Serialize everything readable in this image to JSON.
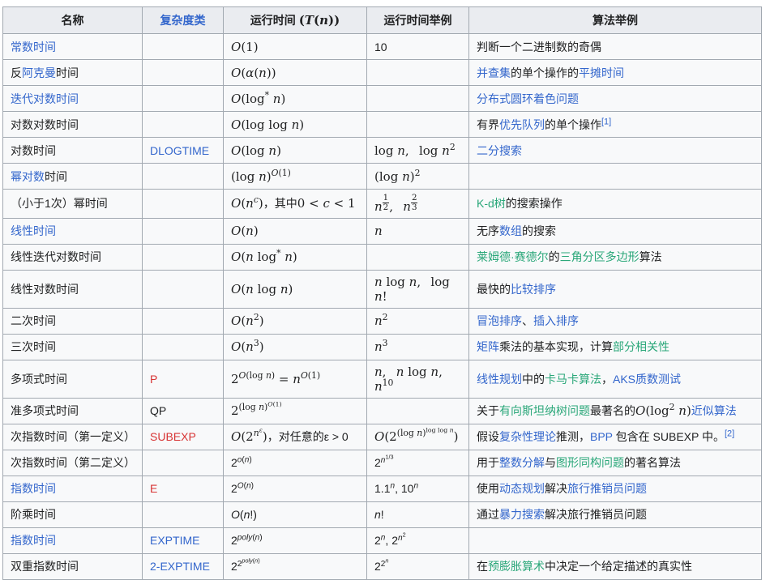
{
  "colors": {
    "link_blue": "#3366cc",
    "interwiki_green": "#2aa779",
    "redlink_red": "#d73333",
    "text": "#202122",
    "border": "#a2a9b1",
    "header_bg": "#eaecf0",
    "cell_bg": "#f8f9fa"
  },
  "table": {
    "header_names": [
      "col-name",
      "col-complexity-class",
      "col-running-time",
      "col-running-time-examples",
      "col-algorithm-examples"
    ],
    "headers": [
      [
        {
          "t": "名称"
        }
      ],
      [
        {
          "t": "复杂度类",
          "c": "blue"
        }
      ],
      [
        {
          "t": "运行时间 "
        },
        {
          "m": "(T(n))"
        }
      ],
      [
        {
          "t": "运行时间举例"
        }
      ],
      [
        {
          "t": "算法举例"
        }
      ]
    ],
    "rows": [
      {
        "name": [
          {
            "t": "常数时间",
            "c": "blue"
          }
        ],
        "cls": [],
        "time": [
          {
            "m": "O(1)"
          }
        ],
        "ex": [
          {
            "t": "10"
          }
        ],
        "alg": [
          {
            "t": "判断一个二进制数的奇偶"
          }
        ]
      },
      {
        "name": [
          {
            "t": "反"
          },
          {
            "t": "阿克曼",
            "c": "blue"
          },
          {
            "t": "时间"
          }
        ],
        "cls": [],
        "time": [
          {
            "m": "O(α(n))"
          }
        ],
        "ex": [],
        "alg": [
          {
            "t": "并查集",
            "c": "blue"
          },
          {
            "t": "的单个操作的"
          },
          {
            "t": "平摊时间",
            "c": "blue"
          }
        ]
      },
      {
        "name": [
          {
            "t": "迭代对数时间",
            "c": "blue"
          }
        ],
        "cls": [],
        "time": [
          {
            "m": "O(log^{*} n)"
          }
        ],
        "ex": [],
        "alg": [
          {
            "t": "分布式圆环着色问题",
            "c": "blue"
          }
        ]
      },
      {
        "name": [
          {
            "t": "对数对数时间"
          }
        ],
        "cls": [],
        "time": [
          {
            "m": "O(log log n)"
          }
        ],
        "ex": [],
        "alg": [
          {
            "t": "有界"
          },
          {
            "t": "优先队列",
            "c": "blue"
          },
          {
            "t": "的单个操作"
          },
          {
            "t": "[1]",
            "c": "blue",
            "sup": true
          }
        ]
      },
      {
        "name": [
          {
            "t": "对数时间"
          }
        ],
        "cls": [
          {
            "t": "DLOGTIME",
            "c": "blue"
          }
        ],
        "time": [
          {
            "m": "O(log n)"
          }
        ],
        "ex": [
          {
            "m": "log n,  log n^{2}"
          }
        ],
        "alg": [
          {
            "t": "二分搜索",
            "c": "blue"
          }
        ]
      },
      {
        "name": [
          {
            "t": "幂对数",
            "c": "blue"
          },
          {
            "t": "时间"
          }
        ],
        "cls": [],
        "time": [
          {
            "m": "(log n)^{O(1)}"
          }
        ],
        "ex": [
          {
            "m": "(log n)^{2}"
          }
        ],
        "alg": []
      },
      {
        "name": [
          {
            "t": "（小于1次）幂时间"
          }
        ],
        "cls": [],
        "time": [
          {
            "m": "O(n^{c})"
          },
          {
            "t": "，其中"
          },
          {
            "m": "0 < c < 1"
          }
        ],
        "ex": [
          {
            "m": "n^{\\f{1}{2}},  n^{\\f{2}{3}}"
          }
        ],
        "alg": [
          {
            "t": "K-d树",
            "c": "green"
          },
          {
            "t": "的搜索操作"
          }
        ]
      },
      {
        "name": [
          {
            "t": "线性时间",
            "c": "blue"
          }
        ],
        "cls": [],
        "time": [
          {
            "m": "O(n)"
          }
        ],
        "ex": [
          {
            "m": "n"
          }
        ],
        "alg": [
          {
            "t": "无序"
          },
          {
            "t": "数组",
            "c": "blue"
          },
          {
            "t": "的搜索"
          }
        ]
      },
      {
        "name": [
          {
            "t": "线性迭代对数时间"
          }
        ],
        "cls": [],
        "time": [
          {
            "m": "O(n log^{*} n)"
          }
        ],
        "ex": [],
        "alg": [
          {
            "t": "莱姆德·赛德尔",
            "c": "green"
          },
          {
            "t": "的"
          },
          {
            "t": "三角分区多边形",
            "c": "green"
          },
          {
            "t": "算法"
          }
        ]
      },
      {
        "name": [
          {
            "t": "线性对数时间"
          }
        ],
        "cls": [],
        "time": [
          {
            "m": "O(n log n)"
          }
        ],
        "ex": [
          {
            "m": "n log n,  log n!"
          }
        ],
        "alg": [
          {
            "t": "最快的"
          },
          {
            "t": "比较排序",
            "c": "blue"
          }
        ]
      },
      {
        "name": [
          {
            "t": "二次时间"
          }
        ],
        "cls": [],
        "time": [
          {
            "m": "O(n^{2})"
          }
        ],
        "ex": [
          {
            "m": "n^{2}"
          }
        ],
        "alg": [
          {
            "t": "冒泡排序",
            "c": "blue"
          },
          {
            "t": "、"
          },
          {
            "t": "插入排序",
            "c": "blue"
          }
        ]
      },
      {
        "name": [
          {
            "t": "三次时间"
          }
        ],
        "cls": [],
        "time": [
          {
            "m": "O(n^{3})"
          }
        ],
        "ex": [
          {
            "m": "n^{3}"
          }
        ],
        "alg": [
          {
            "t": "矩阵",
            "c": "blue"
          },
          {
            "t": "乘法的基本实现，计算"
          },
          {
            "t": "部分相关性",
            "c": "green"
          }
        ]
      },
      {
        "name": [
          {
            "t": "多项式时间"
          }
        ],
        "cls": [
          {
            "t": "P",
            "c": "red"
          }
        ],
        "time": [
          {
            "m": "2^{O(log n)} = n^{O(1)}"
          }
        ],
        "ex": [
          {
            "m": "n,  n log n,  n^{10}"
          }
        ],
        "alg": [
          {
            "t": "线性规划",
            "c": "blue"
          },
          {
            "t": "中的"
          },
          {
            "t": "卡马卡算法",
            "c": "green"
          },
          {
            "t": "，"
          },
          {
            "t": "AKS质数测试",
            "c": "blue"
          }
        ]
      },
      {
        "name": [
          {
            "t": "准多项式时间"
          }
        ],
        "cls": [
          {
            "t": "QP"
          }
        ],
        "time": [
          {
            "m": "2^{(log n)^{O(1)}}"
          }
        ],
        "ex": [],
        "alg": [
          {
            "t": "关于"
          },
          {
            "t": "有向斯坦纳树问题",
            "c": "green"
          },
          {
            "t": "最著名的"
          },
          {
            "m": "O(log^{2} n)"
          },
          {
            "t": "近似算法",
            "c": "blue"
          }
        ]
      },
      {
        "name": [
          {
            "t": "次指数时间（第一定义）"
          }
        ],
        "cls": [
          {
            "t": "SUBEXP",
            "c": "red"
          }
        ],
        "time": [
          {
            "m": "O(2^{n^{ε}})"
          },
          {
            "t": "，对任意的ε > 0"
          }
        ],
        "ex": [
          {
            "m": "O(2^{(log n)^{log log n}})"
          }
        ],
        "alg": [
          {
            "t": "假设"
          },
          {
            "t": "复杂性理论",
            "c": "blue"
          },
          {
            "t": "推测，"
          },
          {
            "t": "BPP",
            "c": "blue"
          },
          {
            "t": " 包含在 SUBEXP 中。"
          },
          {
            "t": "[2]",
            "c": "blue",
            "sup": true
          }
        ]
      },
      {
        "name": [
          {
            "t": "次指数时间（第二定义）"
          }
        ],
        "cls": [],
        "time": [
          {
            "ms": "2^{o(n)}"
          }
        ],
        "ex": [
          {
            "ms": "2^{n^{1/3}}"
          }
        ],
        "alg": [
          {
            "t": "用于"
          },
          {
            "t": "整数分解",
            "c": "blue"
          },
          {
            "t": "与"
          },
          {
            "t": "图形同构问题",
            "c": "green"
          },
          {
            "t": "的著名算法"
          }
        ]
      },
      {
        "name": [
          {
            "t": "指数时间",
            "c": "blue"
          }
        ],
        "cls": [
          {
            "t": "E",
            "c": "red"
          }
        ],
        "time": [
          {
            "ms": "2^{O(n)}"
          }
        ],
        "ex": [
          {
            "ms": "1.1^{n}, 10^{n}"
          }
        ],
        "alg": [
          {
            "t": "使用"
          },
          {
            "t": "动态规划",
            "c": "blue"
          },
          {
            "t": "解决"
          },
          {
            "t": "旅行推销员问题",
            "c": "blue"
          }
        ]
      },
      {
        "name": [
          {
            "t": "阶乘时间"
          }
        ],
        "cls": [],
        "time": [
          {
            "ms": "O(n!)"
          }
        ],
        "ex": [
          {
            "ms": "n!"
          }
        ],
        "alg": [
          {
            "t": "通过"
          },
          {
            "t": "暴力搜索",
            "c": "blue"
          },
          {
            "t": "解决旅行推销员问题"
          }
        ]
      },
      {
        "name": [
          {
            "t": "指数时间",
            "c": "blue"
          }
        ],
        "cls": [
          {
            "t": "EXPTIME",
            "c": "blue"
          }
        ],
        "time": [
          {
            "ms": "2^{poly(n)}"
          }
        ],
        "ex": [
          {
            "ms": "2^{n}, 2^{n^{2}}"
          }
        ],
        "alg": []
      },
      {
        "name": [
          {
            "t": "双重指数时间"
          }
        ],
        "cls": [
          {
            "t": "2-EXPTIME",
            "c": "blue"
          }
        ],
        "time": [
          {
            "ms": "2^{2^{poly(n)}}"
          }
        ],
        "ex": [
          {
            "ms": "2^{2^{n}}"
          }
        ],
        "alg": [
          {
            "t": "在"
          },
          {
            "t": "预膨胀算术",
            "c": "green"
          },
          {
            "t": "中决定一个给定描述的真实性"
          }
        ]
      }
    ]
  }
}
